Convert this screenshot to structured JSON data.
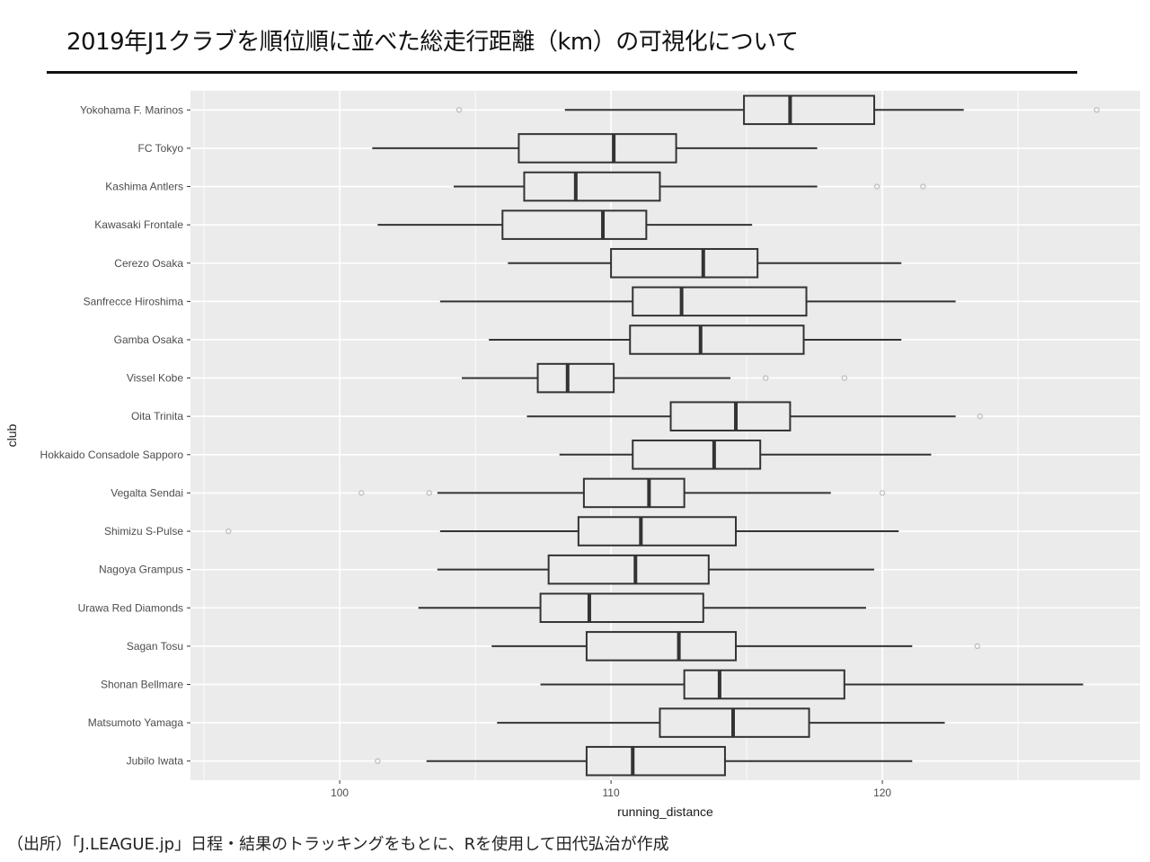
{
  "slide": {
    "title": "2019年J1クラブを順位順に並べた総走行距離（km）の可視化について",
    "source_note": "（出所）「J.LEAGUE.jp」日程・結果のトラッキングをもとに、Rを使用して田代弘治が作成"
  },
  "colors": {
    "panel_background": "#ebebeb",
    "grid_major": "#ffffff",
    "box_stroke": "#333333",
    "outlier": "#bdbdbd"
  },
  "chart_data": {
    "type": "boxplot",
    "orientation": "horizontal",
    "xlabel": "running_distance",
    "ylabel": "club",
    "xlim": [
      94.5,
      129.5
    ],
    "x_ticks": [
      100,
      110,
      120
    ],
    "grid": true,
    "legend": "none",
    "categories": [
      "Yokohama F. Marinos",
      "FC Tokyo",
      "Kashima Antlers",
      "Kawasaki Frontale",
      "Cerezo Osaka",
      "Sanfrecce Hiroshima",
      "Gamba Osaka",
      "Vissel Kobe",
      "Oita Trinita",
      "Hokkaido Consadole Sapporo",
      "Vegalta Sendai",
      "Shimizu S-Pulse",
      "Nagoya Grampus",
      "Urawa Red Diamonds",
      "Sagan Tosu",
      "Shonan Bellmare",
      "Matsumoto Yamaga",
      "Jubilo Iwata"
    ],
    "boxes": [
      {
        "club": "Yokohama F. Marinos",
        "min": 108.3,
        "q1": 114.9,
        "median": 116.6,
        "q3": 119.7,
        "max": 123.0,
        "outliers": [
          104.4,
          127.9
        ]
      },
      {
        "club": "FC Tokyo",
        "min": 101.2,
        "q1": 106.6,
        "median": 110.1,
        "q3": 112.4,
        "max": 117.6,
        "outliers": []
      },
      {
        "club": "Kashima Antlers",
        "min": 104.2,
        "q1": 106.8,
        "median": 108.7,
        "q3": 111.8,
        "max": 117.6,
        "outliers": [
          119.8,
          121.5
        ]
      },
      {
        "club": "Kawasaki Frontale",
        "min": 101.4,
        "q1": 106.0,
        "median": 109.7,
        "q3": 111.3,
        "max": 115.2,
        "outliers": []
      },
      {
        "club": "Cerezo Osaka",
        "min": 106.2,
        "q1": 110.0,
        "median": 113.4,
        "q3": 115.4,
        "max": 120.7,
        "outliers": []
      },
      {
        "club": "Sanfrecce Hiroshima",
        "min": 103.7,
        "q1": 110.8,
        "median": 112.6,
        "q3": 117.2,
        "max": 122.7,
        "outliers": []
      },
      {
        "club": "Gamba Osaka",
        "min": 105.5,
        "q1": 110.7,
        "median": 113.3,
        "q3": 117.1,
        "max": 120.7,
        "outliers": []
      },
      {
        "club": "Vissel Kobe",
        "min": 104.5,
        "q1": 107.3,
        "median": 108.4,
        "q3": 110.1,
        "max": 114.4,
        "outliers": [
          115.7,
          118.6
        ]
      },
      {
        "club": "Oita Trinita",
        "min": 106.9,
        "q1": 112.2,
        "median": 114.6,
        "q3": 116.6,
        "max": 122.7,
        "outliers": [
          123.6
        ]
      },
      {
        "club": "Hokkaido Consadole Sapporo",
        "min": 108.1,
        "q1": 110.8,
        "median": 113.8,
        "q3": 115.5,
        "max": 121.8,
        "outliers": []
      },
      {
        "club": "Vegalta Sendai",
        "min": 103.6,
        "q1": 109.0,
        "median": 111.4,
        "q3": 112.7,
        "max": 118.1,
        "outliers": [
          100.8,
          103.3,
          120.0
        ]
      },
      {
        "club": "Shimizu S-Pulse",
        "min": 103.7,
        "q1": 108.8,
        "median": 111.1,
        "q3": 114.6,
        "max": 120.6,
        "outliers": [
          95.9
        ]
      },
      {
        "club": "Nagoya Grampus",
        "min": 103.6,
        "q1": 107.7,
        "median": 110.9,
        "q3": 113.6,
        "max": 119.7,
        "outliers": []
      },
      {
        "club": "Urawa Red Diamonds",
        "min": 102.9,
        "q1": 107.4,
        "median": 109.2,
        "q3": 113.4,
        "max": 119.4,
        "outliers": []
      },
      {
        "club": "Sagan Tosu",
        "min": 105.6,
        "q1": 109.1,
        "median": 112.5,
        "q3": 114.6,
        "max": 121.1,
        "outliers": [
          123.5
        ]
      },
      {
        "club": "Shonan Bellmare",
        "min": 107.4,
        "q1": 112.7,
        "median": 114.0,
        "q3": 118.6,
        "max": 127.4,
        "outliers": []
      },
      {
        "club": "Matsumoto Yamaga",
        "min": 105.8,
        "q1": 111.8,
        "median": 114.5,
        "q3": 117.3,
        "max": 122.3,
        "outliers": []
      },
      {
        "club": "Jubilo Iwata",
        "min": 103.2,
        "q1": 109.1,
        "median": 110.8,
        "q3": 114.2,
        "max": 121.1,
        "outliers": [
          101.4
        ]
      }
    ]
  }
}
